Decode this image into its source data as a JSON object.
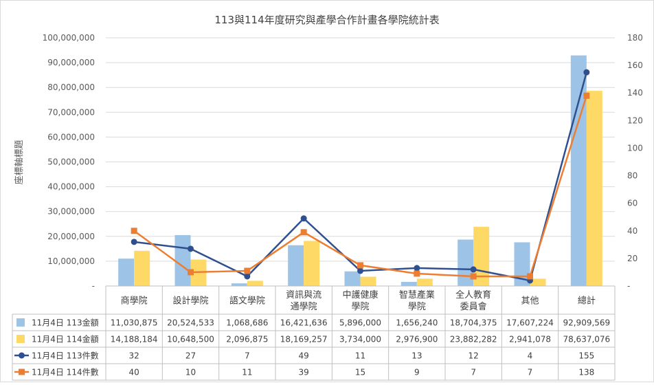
{
  "chart_data": {
    "type": "bar",
    "title": "113與114年度研究與產學合作計畫各學院統計表",
    "ylabel": "座標軸標題",
    "ylim": [
      0,
      100000000
    ],
    "ylim_right": [
      0,
      180
    ],
    "y_ticks": [
      "100,000,000",
      "90,000,000",
      "80,000,000",
      "70,000,000",
      "60,000,000",
      "50,000,000",
      "40,000,000",
      "30,000,000",
      "20,000,000",
      "10,000,000",
      "-"
    ],
    "y_ticks_right": [
      "180",
      "160",
      "140",
      "120",
      "100",
      "80",
      "60",
      "40",
      "20",
      "-"
    ],
    "grid": true,
    "legend": "data-table-left",
    "categories": [
      [
        "商學院"
      ],
      [
        "設計學院"
      ],
      [
        "語文學院"
      ],
      [
        "資訊與流",
        "通學院"
      ],
      [
        "中護健康",
        "學院"
      ],
      [
        "智慧產業",
        "學院"
      ],
      [
        "全人教育",
        "委員會"
      ],
      [
        "其他"
      ],
      [
        "總計"
      ]
    ],
    "series": [
      {
        "name": "11月4日 113金額",
        "type": "bar",
        "axis": "left",
        "color": "#9DC3E6",
        "values": [
          11030875,
          20524533,
          1068686,
          16421636,
          5896000,
          1656240,
          18704375,
          17607224,
          92909569
        ],
        "labels": [
          "11,030,875",
          "20,524,533",
          "1,068,686",
          "16,421,636",
          "5,896,000",
          "1,656,240",
          "18,704,375",
          "17,607,224",
          "92,909,569"
        ]
      },
      {
        "name": "11月4日 114金額",
        "type": "bar",
        "axis": "left",
        "color": "#FFD966",
        "values": [
          14188184,
          10648500,
          2096875,
          18169257,
          3734000,
          2976900,
          23882282,
          2941078,
          78637076
        ],
        "labels": [
          "14,188,184",
          "10,648,500",
          "2,096,875",
          "18,169,257",
          "3,734,000",
          "2,976,900",
          "23,882,282",
          "2,941,078",
          "78,637,076"
        ]
      },
      {
        "name": "11月4日 113件數",
        "type": "line",
        "axis": "right",
        "color": "#2F4F8F",
        "marker": "circle",
        "values": [
          32,
          27,
          7,
          49,
          11,
          13,
          12,
          4,
          155
        ],
        "labels": [
          "32",
          "27",
          "7",
          "49",
          "11",
          "13",
          "12",
          "4",
          "155"
        ]
      },
      {
        "name": "11月4日 114件數",
        "type": "line",
        "axis": "right",
        "color": "#ED7D31",
        "marker": "square",
        "values": [
          40,
          10,
          11,
          39,
          15,
          9,
          7,
          7,
          138
        ],
        "labels": [
          "40",
          "10",
          "11",
          "39",
          "15",
          "9",
          "7",
          "7",
          "138"
        ]
      }
    ]
  }
}
